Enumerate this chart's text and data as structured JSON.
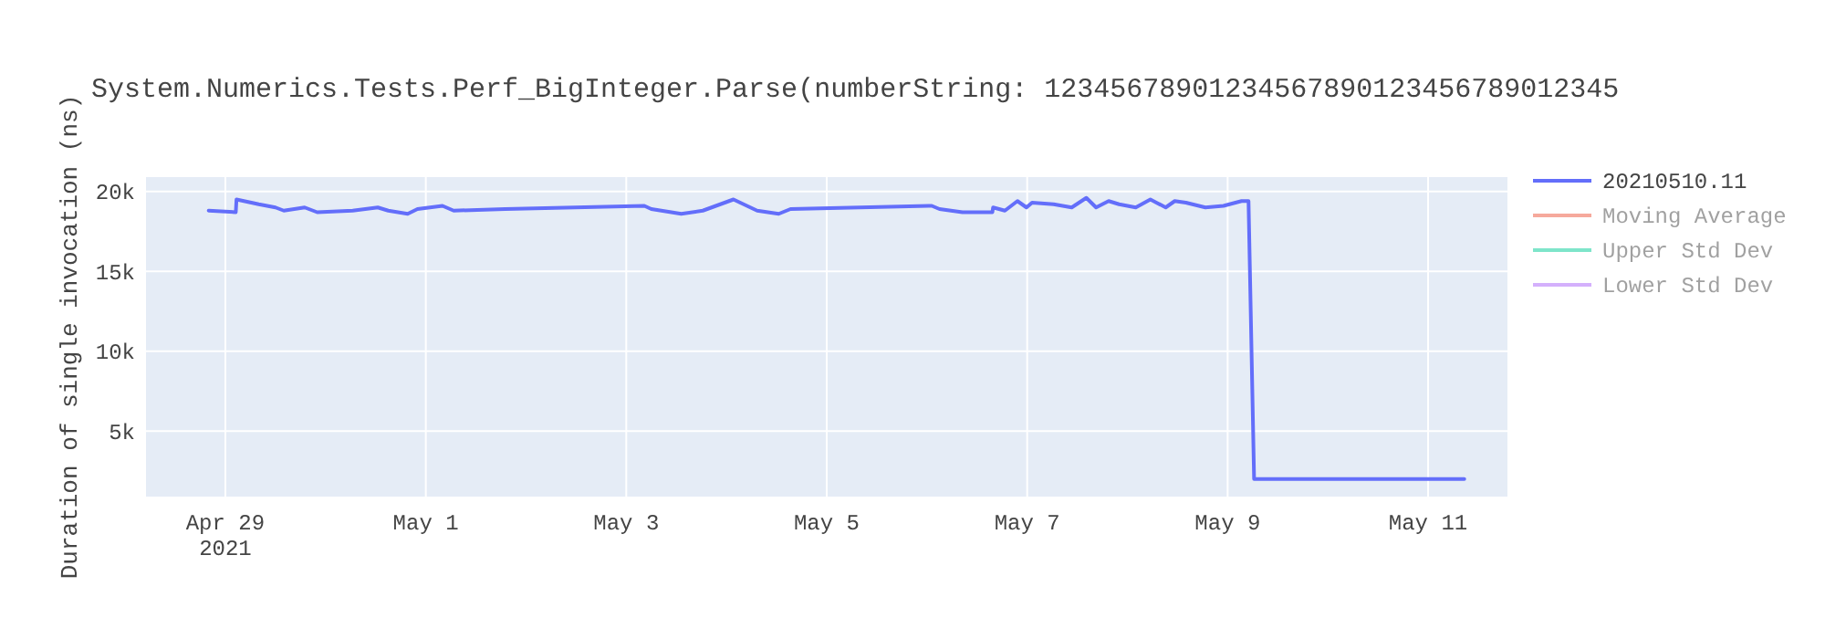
{
  "chart_data": {
    "type": "line",
    "title": "System.Numerics.Tests.Perf_BigInteger.Parse(numberString: 12345678901234567890123456789012345",
    "ylabel": "Duration of single invocation (ns)",
    "xlim": [
      "2021-04-28T05:00",
      "2021-05-11T19:00"
    ],
    "xticks": [
      {
        "value": "2021-04-29",
        "label": "Apr 29\n2021"
      },
      {
        "value": "2021-05-01",
        "label": "May 1"
      },
      {
        "value": "2021-05-03",
        "label": "May 3"
      },
      {
        "value": "2021-05-05",
        "label": "May 5"
      },
      {
        "value": "2021-05-07",
        "label": "May 7"
      },
      {
        "value": "2021-05-09",
        "label": "May 9"
      },
      {
        "value": "2021-05-11",
        "label": "May 11"
      }
    ],
    "ylim": [
      900,
      20900
    ],
    "yticks": [
      {
        "value": 5000,
        "label": "5k"
      },
      {
        "value": 10000,
        "label": "10k"
      },
      {
        "value": 15000,
        "label": "15k"
      },
      {
        "value": 20000,
        "label": "20k"
      }
    ],
    "grid": true,
    "legend": "top right",
    "series": [
      {
        "name": "20210510.11",
        "color": "#636efa",
        "x": [
          "2021-04-28T20:00",
          "2021-04-29T02:30",
          "2021-04-29T02:40",
          "2021-04-29T08:00",
          "2021-04-29T12:00",
          "2021-04-29T14:00",
          "2021-04-29T19:00",
          "2021-04-29T22:00",
          "2021-04-30T06:30",
          "2021-04-30T12:30",
          "2021-04-30T15:00",
          "2021-04-30T19:40",
          "2021-04-30T22:00",
          "2021-05-01T04:00",
          "2021-05-01T06:40",
          "2021-05-01T19:00",
          "2021-05-03T04:20",
          "2021-05-03T06:00",
          "2021-05-03T13:10",
          "2021-05-03T18:20",
          "2021-05-04T01:40",
          "2021-05-04T07:20",
          "2021-05-04T12:30",
          "2021-05-04T15:20",
          "2021-05-06T01:10",
          "2021-05-06T03:00",
          "2021-05-06T08:30",
          "2021-05-06T15:40",
          "2021-05-06T15:50",
          "2021-05-06T18:40",
          "2021-05-06T21:40",
          "2021-05-06T23:50",
          "2021-05-07T01:10",
          "2021-05-07T06:20",
          "2021-05-07T10:40",
          "2021-05-07T14:10",
          "2021-05-07T16:30",
          "2021-05-07T19:30",
          "2021-05-07T22:00",
          "2021-05-08T02:00",
          "2021-05-08T05:30",
          "2021-05-08T09:10",
          "2021-05-08T11:20",
          "2021-05-08T14:00",
          "2021-05-08T18:40",
          "2021-05-08T23:00",
          "2021-05-09T03:20",
          "2021-05-09T05:00",
          "2021-05-09T06:20",
          "2021-05-10T00:00",
          "2021-05-11T08:40"
        ],
        "values": [
          18800,
          18700,
          19500,
          19200,
          19000,
          18800,
          19000,
          18700,
          18800,
          19000,
          18800,
          18600,
          18900,
          19100,
          18800,
          18900,
          19100,
          18900,
          18600,
          18800,
          19500,
          18800,
          18600,
          18900,
          19100,
          18900,
          18700,
          18700,
          19000,
          18800,
          19400,
          19000,
          19300,
          19200,
          19000,
          19600,
          19000,
          19400,
          19200,
          19000,
          19500,
          19000,
          19400,
          19300,
          19000,
          19100,
          19400,
          19400,
          2000,
          2000,
          2000
        ]
      },
      {
        "name": "Moving Average",
        "color": "#ef553b"
      },
      {
        "name": "Upper Std Dev",
        "color": "#00cc96"
      },
      {
        "name": "Lower Std Dev",
        "color": "#ab63fa"
      }
    ]
  }
}
